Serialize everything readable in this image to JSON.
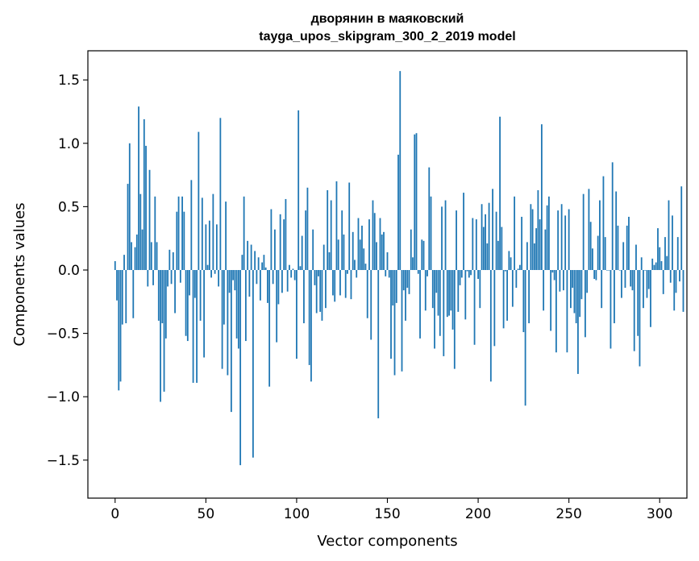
{
  "chart_data": {
    "type": "bar",
    "title": "дворянин в маяковский",
    "subtitle": "tayga_upos_skipgram_300_2_2019 model",
    "xlabel": "Vector components",
    "ylabel": "Components values",
    "xlim": [
      -15,
      315
    ],
    "ylim": [
      -1.8,
      1.73
    ],
    "xticks": [
      0,
      50,
      100,
      150,
      200,
      250,
      300
    ],
    "yticks": [
      -1.5,
      -1.0,
      -0.5,
      0.0,
      0.5,
      1.0,
      1.5
    ],
    "ytick_labels": [
      "−1.5",
      "−1.0",
      "−0.5",
      "0.0",
      "0.5",
      "1.0",
      "1.5"
    ],
    "bar_color": "#1f77b4",
    "series": [
      {
        "name": "components",
        "values": [
          0.07,
          -0.24,
          -0.95,
          -0.88,
          -0.43,
          0.12,
          -0.42,
          0.68,
          1.0,
          0.22,
          -0.38,
          0.18,
          0.28,
          1.29,
          0.6,
          0.32,
          1.19,
          0.98,
          -0.13,
          0.79,
          0.22,
          -0.12,
          0.58,
          0.22,
          -0.4,
          -1.04,
          -0.42,
          -0.96,
          -0.54,
          -0.13,
          0.16,
          -0.11,
          0.14,
          -0.34,
          0.46,
          0.58,
          -0.1,
          0.58,
          0.46,
          -0.52,
          -0.56,
          -0.2,
          0.71,
          -0.89,
          -0.22,
          -0.89,
          1.09,
          -0.4,
          0.57,
          -0.69,
          0.36,
          0.04,
          0.39,
          -0.06,
          0.6,
          -0.03,
          0.36,
          -0.13,
          1.2,
          -0.78,
          -0.43,
          0.54,
          -0.83,
          -0.18,
          -1.12,
          -0.08,
          -0.16,
          -0.54,
          -0.62,
          -1.54,
          0.12,
          0.58,
          -0.56,
          0.23,
          -0.21,
          0.2,
          -1.48,
          0.15,
          -0.11,
          0.1,
          -0.24,
          0.06,
          0.12,
          0.02,
          -0.26,
          -0.92,
          0.48,
          -0.11,
          0.32,
          -0.57,
          -0.27,
          0.44,
          -0.18,
          0.4,
          0.56,
          -0.17,
          0.04,
          -0.06,
          0.01,
          -0.08,
          -0.7,
          1.26,
          0.03,
          0.27,
          -0.42,
          0.47,
          0.65,
          -0.75,
          -0.88,
          0.32,
          -0.12,
          -0.34,
          -0.05,
          -0.33,
          -0.4,
          0.2,
          -0.3,
          0.63,
          0.14,
          0.55,
          -0.2,
          -0.25,
          0.7,
          0.24,
          -0.2,
          0.47,
          0.28,
          -0.22,
          -0.03,
          0.69,
          -0.23,
          0.3,
          0.08,
          -0.06,
          0.41,
          0.24,
          0.35,
          0.17,
          0.05,
          -0.38,
          0.4,
          -0.55,
          0.55,
          0.45,
          0.22,
          -1.17,
          0.41,
          0.28,
          0.3,
          -0.05,
          0.14,
          -0.06,
          -0.7,
          -0.28,
          -0.83,
          -0.26,
          0.91,
          1.57,
          -0.8,
          -0.16,
          -0.4,
          -0.14,
          -0.19,
          0.32,
          0.1,
          1.07,
          1.08,
          -0.03,
          -0.54,
          0.24,
          0.23,
          -0.32,
          -0.05,
          0.81,
          0.58,
          -0.3,
          -0.62,
          -0.18,
          -0.36,
          -0.52,
          0.5,
          -0.68,
          0.55,
          -0.37,
          -0.36,
          -0.32,
          -0.47,
          -0.78,
          0.47,
          -0.33,
          -0.12,
          -0.06,
          0.61,
          -0.39,
          -0.01,
          -0.06,
          -0.04,
          0.41,
          -0.59,
          0.4,
          -0.07,
          -0.3,
          0.52,
          0.34,
          0.44,
          0.21,
          0.53,
          -0.88,
          0.64,
          -0.6,
          0.46,
          0.23,
          1.21,
          0.34,
          -0.46,
          -0.01,
          -0.4,
          0.15,
          0.1,
          -0.29,
          0.58,
          -0.14,
          0.01,
          0.04,
          0.42,
          -0.49,
          -1.07,
          0.22,
          -0.42,
          0.52,
          0.48,
          0.21,
          0.33,
          0.63,
          0.4,
          1.15,
          -0.32,
          0.32,
          0.51,
          0.58,
          -0.48,
          -0.02,
          -0.08,
          -0.65,
          0.47,
          -0.17,
          0.52,
          -0.16,
          0.43,
          -0.65,
          0.48,
          -0.3,
          -0.14,
          -0.34,
          -0.42,
          -0.82,
          -0.37,
          -0.23,
          0.6,
          -0.53,
          -0.18,
          0.64,
          0.38,
          0.17,
          -0.07,
          -0.08,
          0.27,
          0.55,
          -0.3,
          0.74,
          0.26,
          0.0,
          0.0,
          -0.62,
          0.85,
          -0.42,
          0.62,
          0.35,
          0.0,
          -0.22,
          0.22,
          -0.14,
          0.35,
          0.42,
          -0.13,
          -0.16,
          -0.64,
          0.2,
          -0.52,
          -0.76,
          0.1,
          -0.3,
          0.0,
          -0.22,
          -0.15,
          -0.45,
          0.09,
          0.04,
          0.06,
          0.33,
          0.18,
          0.07,
          -0.19,
          0.26,
          0.11,
          0.55,
          -0.1,
          0.43,
          -0.32,
          -0.18,
          0.26,
          -0.09,
          0.66,
          -0.33
        ]
      }
    ]
  }
}
